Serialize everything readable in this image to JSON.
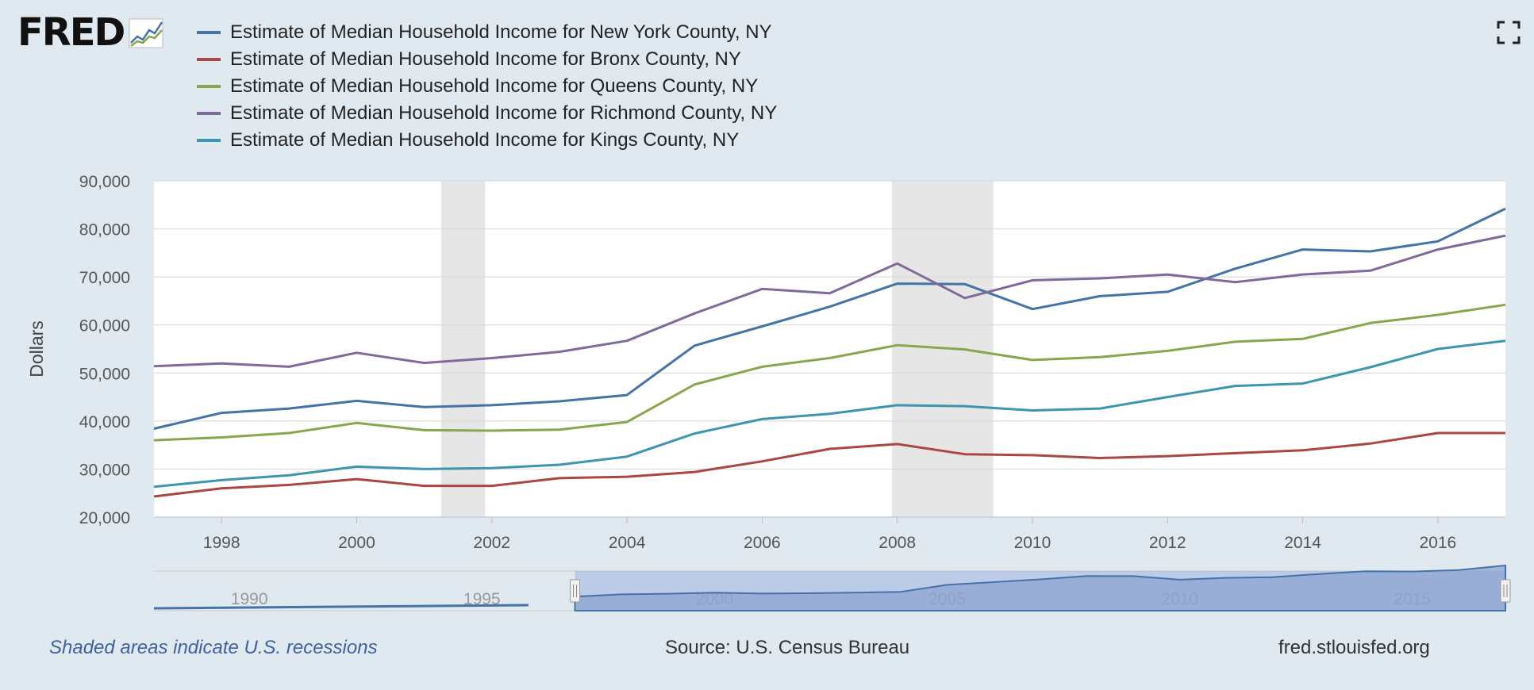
{
  "logo": {
    "text": "FRED"
  },
  "footer": {
    "recession_note": "Shaded areas indicate U.S. recessions",
    "source": "Source: U.S. Census Bureau",
    "site": "fred.stlouisfed.org"
  },
  "colors": {
    "background": "#e1e9f0",
    "plot_background": "#ffffff",
    "recession_shade": "#e6e6e6",
    "navigator_fill": "#8ea4d2"
  },
  "icons": {
    "logo_graph": "line-graph-icon",
    "fullscreen": "fullscreen-icon"
  },
  "chart_data": {
    "type": "line",
    "ylabel": "Dollars",
    "ylim": [
      20000,
      90000
    ],
    "yticks": [
      20000,
      30000,
      40000,
      50000,
      60000,
      70000,
      80000,
      90000
    ],
    "ytick_labels": [
      "20,000",
      "30,000",
      "40,000",
      "50,000",
      "60,000",
      "70,000",
      "80,000",
      "90,000"
    ],
    "xlim": [
      1997,
      2017
    ],
    "xticks": [
      "1998",
      "2000",
      "2002",
      "2004",
      "2006",
      "2008",
      "2010",
      "2012",
      "2014",
      "2016"
    ],
    "grid": "horizontal",
    "legend_position": "top-left",
    "recessions": [
      [
        2001.25,
        2001.9
      ],
      [
        2007.92,
        2009.42
      ]
    ],
    "x": [
      1997,
      1998,
      1999,
      2000,
      2001,
      2002,
      2003,
      2004,
      2005,
      2006,
      2007,
      2008,
      2009,
      2010,
      2011,
      2012,
      2013,
      2014,
      2015,
      2016,
      2017
    ],
    "series": [
      {
        "name": "Estimate of Median Household Income for New York County, NY",
        "color": "#4572a7",
        "values": [
          38400,
          41700,
          42600,
          44200,
          42900,
          43300,
          44100,
          45400,
          55700,
          59700,
          63800,
          68600,
          68500,
          63300,
          66000,
          66900,
          71700,
          75700,
          75300,
          77400,
          84200
        ]
      },
      {
        "name": "Estimate of Median Household Income for Bronx County, NY",
        "color": "#aa4643",
        "values": [
          24300,
          26000,
          26700,
          27900,
          26500,
          26500,
          28100,
          28400,
          29400,
          31600,
          34200,
          35200,
          33100,
          32900,
          32300,
          32700,
          33300,
          33900,
          35300,
          37500,
          37500
        ]
      },
      {
        "name": "Estimate of Median Household Income for Queens County, NY",
        "color": "#89a54e",
        "values": [
          36000,
          36600,
          37500,
          39600,
          38100,
          38000,
          38200,
          39800,
          47600,
          51300,
          53100,
          55800,
          54900,
          52700,
          53300,
          54600,
          56500,
          57100,
          60400,
          62100,
          64200
        ]
      },
      {
        "name": "Estimate of Median Household Income for Richmond County, NY",
        "color": "#80699b",
        "values": [
          51400,
          52000,
          51300,
          54200,
          52100,
          53100,
          54400,
          56700,
          62400,
          67500,
          66600,
          72800,
          65600,
          69300,
          69700,
          70500,
          68900,
          70500,
          71300,
          75700,
          78600
        ]
      },
      {
        "name": "Estimate of Median Household Income for Kings County, NY",
        "color": "#3d96ae",
        "values": [
          26300,
          27700,
          28700,
          30500,
          30000,
          30200,
          30900,
          32600,
          37400,
          40400,
          41500,
          43300,
          43100,
          42200,
          42600,
          45000,
          47300,
          47800,
          51200,
          55000,
          56700
        ]
      }
    ],
    "navigator": {
      "xticks": [
        "1990",
        "1995",
        "2000",
        "2005",
        "2010",
        "2015"
      ],
      "range": [
        1997,
        2017
      ]
    }
  }
}
